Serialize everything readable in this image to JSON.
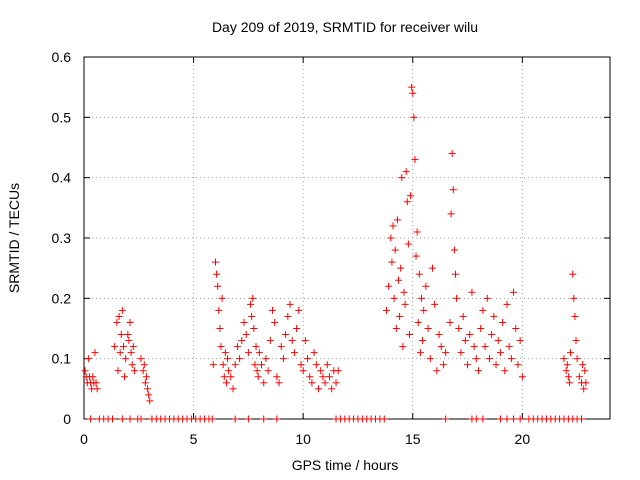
{
  "chart_data": {
    "type": "scatter",
    "title": "Day 209 of 2019, SRMTID for receiver wilu",
    "xlabel": "GPS time / hours",
    "ylabel": "SRMTID / TECUs",
    "xlim": [
      0,
      24
    ],
    "ylim": [
      0,
      0.6
    ],
    "x_ticks": [
      0,
      5,
      10,
      15,
      20
    ],
    "y_ticks": [
      0,
      0.1,
      0.2,
      0.3,
      0.4,
      0.5,
      0.6
    ],
    "y_tick_labels": [
      "0",
      "0.1",
      "0.2",
      "0.3",
      "0.4",
      "0.5",
      "0.6"
    ],
    "grid": true,
    "marker": "+",
    "color": "#ff0000",
    "series": [
      {
        "name": "SRMTID",
        "points": [
          [
            0.05,
            0.08
          ],
          [
            0.1,
            0.07
          ],
          [
            0.15,
            0.06
          ],
          [
            0.2,
            0.1
          ],
          [
            0.25,
            0.07
          ],
          [
            0.3,
            0.06
          ],
          [
            0.35,
            0.05
          ],
          [
            0.4,
            0.07
          ],
          [
            0.45,
            0.06
          ],
          [
            0.5,
            0.11
          ],
          [
            0.55,
            0.06
          ],
          [
            0.6,
            0.05
          ],
          [
            1.4,
            0.12
          ],
          [
            1.5,
            0.16
          ],
          [
            1.55,
            0.08
          ],
          [
            1.6,
            0.17
          ],
          [
            1.65,
            0.11
          ],
          [
            1.7,
            0.14
          ],
          [
            1.75,
            0.18
          ],
          [
            1.8,
            0.12
          ],
          [
            1.85,
            0.07
          ],
          [
            1.9,
            0.1
          ],
          [
            2.0,
            0.14
          ],
          [
            2.05,
            0.13
          ],
          [
            2.1,
            0.16
          ],
          [
            2.15,
            0.11
          ],
          [
            2.2,
            0.09
          ],
          [
            2.25,
            0.12
          ],
          [
            2.3,
            0.08
          ],
          [
            2.6,
            0.1
          ],
          [
            2.7,
            0.08
          ],
          [
            2.75,
            0.09
          ],
          [
            2.8,
            0.06
          ],
          [
            2.85,
            0.07
          ],
          [
            2.9,
            0.05
          ],
          [
            2.95,
            0.04
          ],
          [
            3.0,
            0.03
          ],
          [
            5.9,
            0.09
          ],
          [
            6.0,
            0.26
          ],
          [
            6.05,
            0.24
          ],
          [
            6.1,
            0.22
          ],
          [
            6.15,
            0.18
          ],
          [
            6.2,
            0.15
          ],
          [
            6.25,
            0.12
          ],
          [
            6.3,
            0.2
          ],
          [
            6.35,
            0.09
          ],
          [
            6.4,
            0.07
          ],
          [
            6.45,
            0.11
          ],
          [
            6.5,
            0.06
          ],
          [
            6.55,
            0.1
          ],
          [
            6.6,
            0.08
          ],
          [
            6.7,
            0.07
          ],
          [
            6.8,
            0.05
          ],
          [
            6.9,
            0.09
          ],
          [
            7.0,
            0.12
          ],
          [
            7.1,
            0.1
          ],
          [
            7.2,
            0.13
          ],
          [
            7.3,
            0.16
          ],
          [
            7.4,
            0.14
          ],
          [
            7.5,
            0.11
          ],
          [
            7.6,
            0.19
          ],
          [
            7.65,
            0.17
          ],
          [
            7.7,
            0.2
          ],
          [
            7.75,
            0.15
          ],
          [
            7.8,
            0.09
          ],
          [
            7.85,
            0.12
          ],
          [
            7.9,
            0.08
          ],
          [
            7.95,
            0.07
          ],
          [
            8.0,
            0.11
          ],
          [
            8.1,
            0.09
          ],
          [
            8.2,
            0.06
          ],
          [
            8.3,
            0.1
          ],
          [
            8.4,
            0.08
          ],
          [
            8.5,
            0.13
          ],
          [
            8.6,
            0.18
          ],
          [
            8.7,
            0.16
          ],
          [
            8.8,
            0.07
          ],
          [
            8.9,
            0.06
          ],
          [
            9.0,
            0.12
          ],
          [
            9.1,
            0.1
          ],
          [
            9.2,
            0.14
          ],
          [
            9.3,
            0.17
          ],
          [
            9.4,
            0.19
          ],
          [
            9.5,
            0.13
          ],
          [
            9.6,
            0.11
          ],
          [
            9.7,
            0.15
          ],
          [
            9.8,
            0.18
          ],
          [
            9.9,
            0.09
          ],
          [
            10.0,
            0.08
          ],
          [
            10.1,
            0.13
          ],
          [
            10.2,
            0.1
          ],
          [
            10.3,
            0.07
          ],
          [
            10.4,
            0.06
          ],
          [
            10.5,
            0.11
          ],
          [
            10.6,
            0.09
          ],
          [
            10.7,
            0.05
          ],
          [
            10.8,
            0.08
          ],
          [
            10.9,
            0.07
          ],
          [
            11.0,
            0.06
          ],
          [
            11.1,
            0.09
          ],
          [
            11.2,
            0.07
          ],
          [
            11.3,
            0.05
          ],
          [
            11.4,
            0.08
          ],
          [
            11.5,
            0.06
          ],
          [
            11.6,
            0.08
          ],
          [
            13.8,
            0.18
          ],
          [
            13.9,
            0.22
          ],
          [
            14.0,
            0.3
          ],
          [
            14.05,
            0.26
          ],
          [
            14.1,
            0.32
          ],
          [
            14.15,
            0.2
          ],
          [
            14.2,
            0.28
          ],
          [
            14.25,
            0.15
          ],
          [
            14.3,
            0.33
          ],
          [
            14.35,
            0.23
          ],
          [
            14.4,
            0.17
          ],
          [
            14.45,
            0.25
          ],
          [
            14.5,
            0.4
          ],
          [
            14.55,
            0.12
          ],
          [
            14.6,
            0.21
          ],
          [
            14.65,
            0.19
          ],
          [
            14.7,
            0.41
          ],
          [
            14.75,
            0.36
          ],
          [
            14.8,
            0.29
          ],
          [
            14.85,
            0.14
          ],
          [
            14.9,
            0.37
          ],
          [
            14.95,
            0.55
          ],
          [
            15.0,
            0.54
          ],
          [
            15.05,
            0.5
          ],
          [
            15.1,
            0.43
          ],
          [
            15.15,
            0.27
          ],
          [
            15.2,
            0.31
          ],
          [
            15.25,
            0.16
          ],
          [
            15.3,
            0.24
          ],
          [
            15.35,
            0.11
          ],
          [
            15.4,
            0.2
          ],
          [
            15.45,
            0.13
          ],
          [
            15.5,
            0.18
          ],
          [
            15.6,
            0.22
          ],
          [
            15.7,
            0.15
          ],
          [
            15.8,
            0.1
          ],
          [
            15.9,
            0.25
          ],
          [
            16.0,
            0.19
          ],
          [
            16.1,
            0.08
          ],
          [
            16.2,
            0.14
          ],
          [
            16.3,
            0.12
          ],
          [
            16.4,
            0.09
          ],
          [
            16.5,
            0.11
          ],
          [
            16.7,
            0.16
          ],
          [
            16.75,
            0.34
          ],
          [
            16.8,
            0.44
          ],
          [
            16.85,
            0.38
          ],
          [
            16.9,
            0.28
          ],
          [
            16.95,
            0.24
          ],
          [
            17.0,
            0.2
          ],
          [
            17.1,
            0.15
          ],
          [
            17.2,
            0.11
          ],
          [
            17.3,
            0.17
          ],
          [
            17.4,
            0.13
          ],
          [
            17.5,
            0.09
          ],
          [
            17.6,
            0.14
          ],
          [
            17.7,
            0.21
          ],
          [
            17.8,
            0.12
          ],
          [
            17.9,
            0.1
          ],
          [
            18.0,
            0.08
          ],
          [
            18.1,
            0.15
          ],
          [
            18.2,
            0.18
          ],
          [
            18.3,
            0.12
          ],
          [
            18.4,
            0.2
          ],
          [
            18.5,
            0.1
          ],
          [
            18.6,
            0.14
          ],
          [
            18.7,
            0.17
          ],
          [
            18.8,
            0.09
          ],
          [
            18.9,
            0.13
          ],
          [
            19.0,
            0.11
          ],
          [
            19.1,
            0.16
          ],
          [
            19.2,
            0.08
          ],
          [
            19.3,
            0.19
          ],
          [
            19.4,
            0.12
          ],
          [
            19.5,
            0.1
          ],
          [
            19.6,
            0.21
          ],
          [
            19.7,
            0.15
          ],
          [
            19.8,
            0.09
          ],
          [
            19.9,
            0.13
          ],
          [
            20.0,
            0.07
          ],
          [
            21.9,
            0.1
          ],
          [
            22.0,
            0.08
          ],
          [
            22.05,
            0.09
          ],
          [
            22.1,
            0.07
          ],
          [
            22.15,
            0.06
          ],
          [
            22.2,
            0.11
          ],
          [
            22.3,
            0.24
          ],
          [
            22.35,
            0.2
          ],
          [
            22.4,
            0.17
          ],
          [
            22.45,
            0.13
          ],
          [
            22.5,
            0.1
          ],
          [
            22.6,
            0.07
          ],
          [
            22.7,
            0.06
          ],
          [
            22.75,
            0.09
          ],
          [
            22.8,
            0.05
          ],
          [
            22.85,
            0.08
          ],
          [
            22.9,
            0.06
          ],
          [
            0.3,
            0
          ],
          [
            0.7,
            0
          ],
          [
            0.9,
            0
          ],
          [
            1.1,
            0
          ],
          [
            1.3,
            0
          ],
          [
            1.75,
            0
          ],
          [
            2.1,
            0
          ],
          [
            2.45,
            0
          ],
          [
            2.6,
            0
          ],
          [
            3.1,
            0
          ],
          [
            3.3,
            0
          ],
          [
            3.5,
            0
          ],
          [
            3.7,
            0
          ],
          [
            3.9,
            0
          ],
          [
            4.1,
            0
          ],
          [
            4.3,
            0
          ],
          [
            4.5,
            0
          ],
          [
            4.7,
            0
          ],
          [
            4.9,
            0
          ],
          [
            5.1,
            0
          ],
          [
            5.3,
            0
          ],
          [
            5.5,
            0
          ],
          [
            5.7,
            0
          ],
          [
            5.85,
            0
          ],
          [
            6.9,
            0
          ],
          [
            7.5,
            0
          ],
          [
            8.2,
            0
          ],
          [
            8.8,
            0
          ],
          [
            11.5,
            0
          ],
          [
            11.7,
            0
          ],
          [
            11.9,
            0
          ],
          [
            12.1,
            0
          ],
          [
            12.3,
            0
          ],
          [
            12.5,
            0
          ],
          [
            12.7,
            0
          ],
          [
            12.9,
            0
          ],
          [
            13.1,
            0
          ],
          [
            13.3,
            0
          ],
          [
            13.5,
            0
          ],
          [
            13.7,
            0
          ],
          [
            16.5,
            0
          ],
          [
            17.7,
            0
          ],
          [
            17.9,
            0
          ],
          [
            18.2,
            0
          ],
          [
            19.0,
            0
          ],
          [
            19.3,
            0
          ],
          [
            19.6,
            0
          ],
          [
            19.9,
            0
          ],
          [
            20.3,
            0
          ],
          [
            20.5,
            0
          ],
          [
            20.7,
            0
          ],
          [
            20.9,
            0
          ],
          [
            21.1,
            0
          ],
          [
            21.3,
            0
          ],
          [
            21.5,
            0
          ],
          [
            21.7,
            0
          ],
          [
            21.9,
            0
          ],
          [
            22.1,
            0
          ],
          [
            22.3,
            0
          ],
          [
            22.5,
            0
          ],
          [
            22.7,
            0
          ]
        ]
      }
    ]
  }
}
